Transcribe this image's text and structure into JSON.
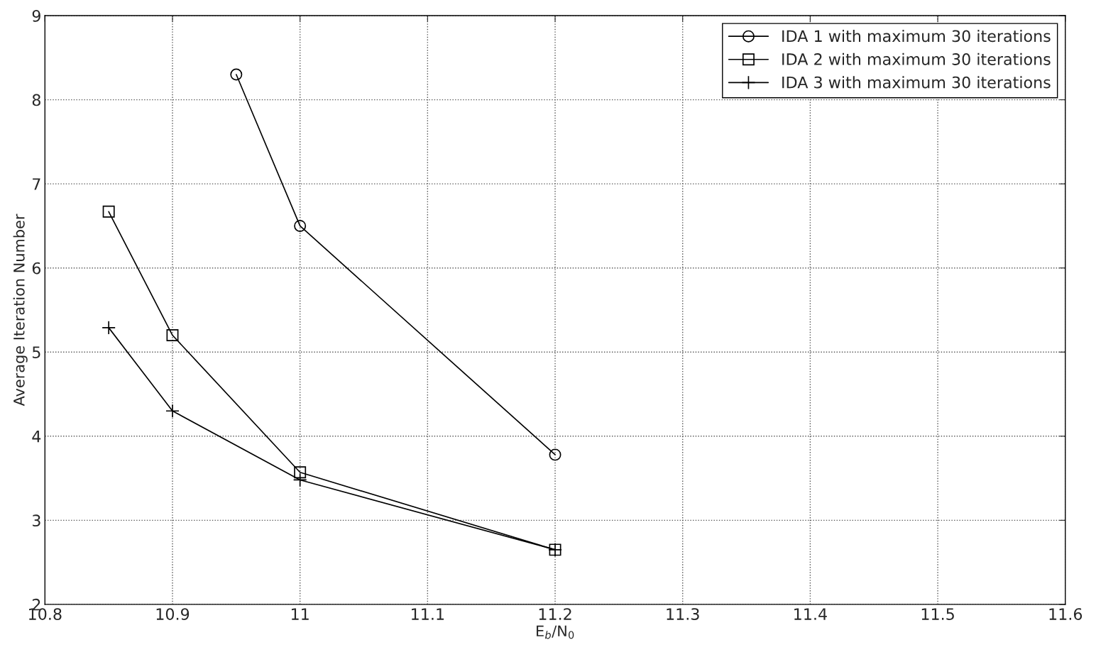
{
  "chart_data": {
    "type": "line",
    "xlabel": "E$_{b}$/N$_{0}$",
    "ylabel": "Average Iteration Number",
    "series": [
      {
        "name": "IDA 1 with maximum 30 iterations",
        "color": "#000000",
        "marker": "circle",
        "x": [
          10.95,
          11.0,
          11.2
        ],
        "values": [
          8.3,
          6.5,
          3.78
        ]
      },
      {
        "name": "IDA 2 with maximum 30 iterations",
        "color": "#000000",
        "marker": "square",
        "x": [
          10.85,
          10.9,
          11.0,
          11.2
        ],
        "values": [
          6.67,
          5.2,
          3.57,
          2.65
        ]
      },
      {
        "name": "IDA 3 with maximum 30 iterations",
        "color": "#000000",
        "marker": "cross",
        "x": [
          10.85,
          10.9,
          11.0,
          11.2
        ],
        "values": [
          5.29,
          4.3,
          3.48,
          2.65
        ]
      }
    ],
    "xlim": [
      10.8,
      11.6
    ],
    "xticks": [
      10.8,
      10.9,
      11,
      11.1,
      11.2,
      11.3,
      11.4,
      11.5,
      11.6
    ],
    "ylim": [
      2,
      9
    ],
    "yticks": [
      2,
      3,
      4,
      5,
      6,
      7,
      8,
      9
    ],
    "grid": true,
    "legend": "top right",
    "line_style": "solid"
  }
}
